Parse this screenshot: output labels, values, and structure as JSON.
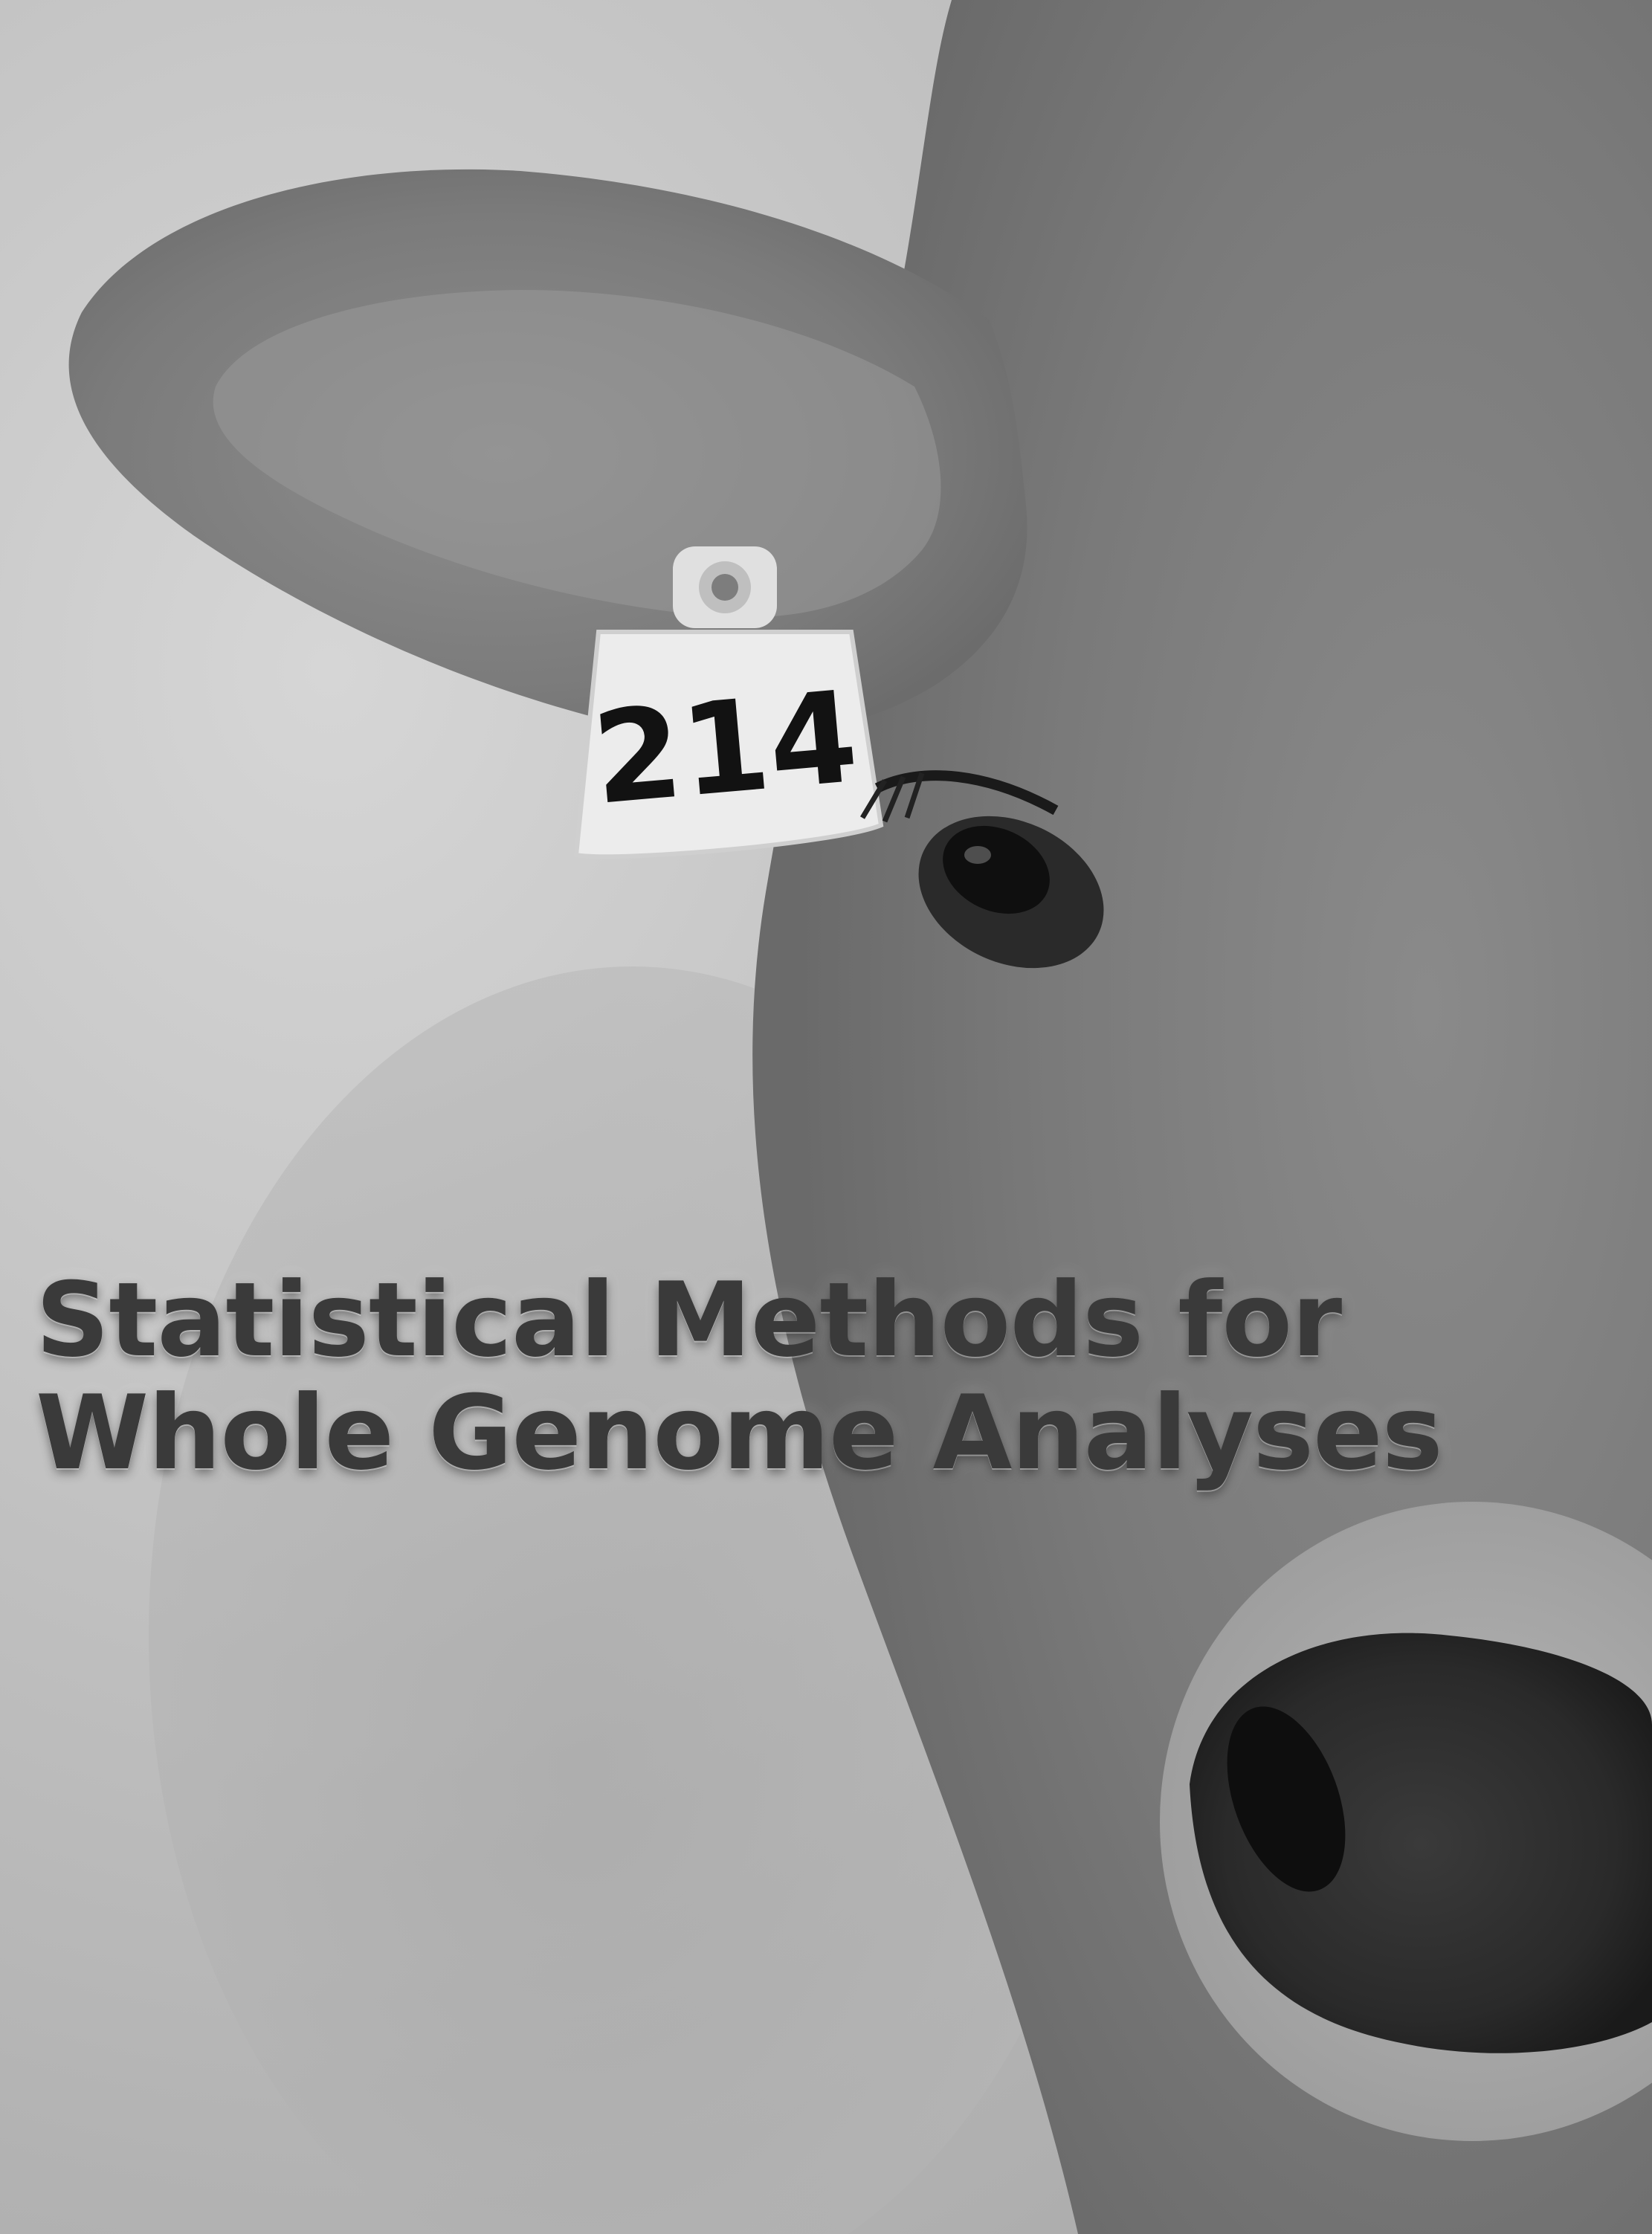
{
  "cover": {
    "title_line_1": "Statistical Methods for",
    "title_line_2": "Whole Genome Analyses"
  },
  "photo": {
    "ear_tag_number": "214"
  },
  "colors": {
    "title_text": "#3a3a3a",
    "background_gray": "#bdbdbd"
  }
}
